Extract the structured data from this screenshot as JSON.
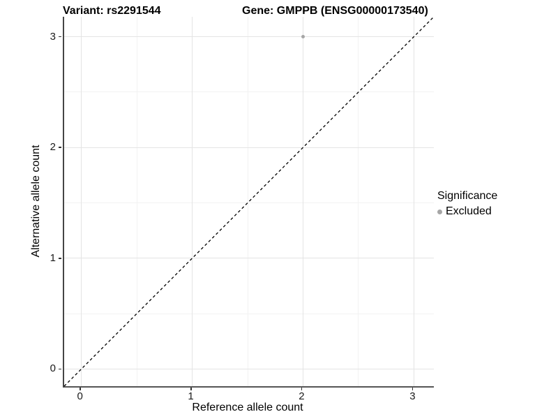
{
  "chart_data": {
    "type": "scatter",
    "titles": {
      "left": "Variant: rs2291544",
      "right": "Gene: GMPPB (ENSG00000173540)"
    },
    "xlabel": "Reference allele count",
    "ylabel": "Alternative allele count",
    "xlim": [
      -0.155,
      3.18
    ],
    "ylim": [
      -0.155,
      3.18
    ],
    "x_ticks": [
      0,
      1,
      2,
      3
    ],
    "y_ticks": [
      0,
      1,
      2,
      3
    ],
    "x_minor_ticks": [
      0.5,
      1.5,
      2.5
    ],
    "y_minor_ticks": [
      0.5,
      1.5,
      2.5
    ],
    "grid": "on",
    "identity_line": {
      "style": "dashed",
      "color": "#000000",
      "slope": 1,
      "intercept": 0
    },
    "series": [
      {
        "name": "Excluded",
        "color": "#a6a6a6",
        "points": [
          {
            "x": 2,
            "y": 3
          }
        ]
      }
    ],
    "legend": {
      "title": "Significance",
      "position": "right",
      "items": [
        {
          "label": "Excluded",
          "color": "#a6a6a6"
        }
      ]
    }
  }
}
